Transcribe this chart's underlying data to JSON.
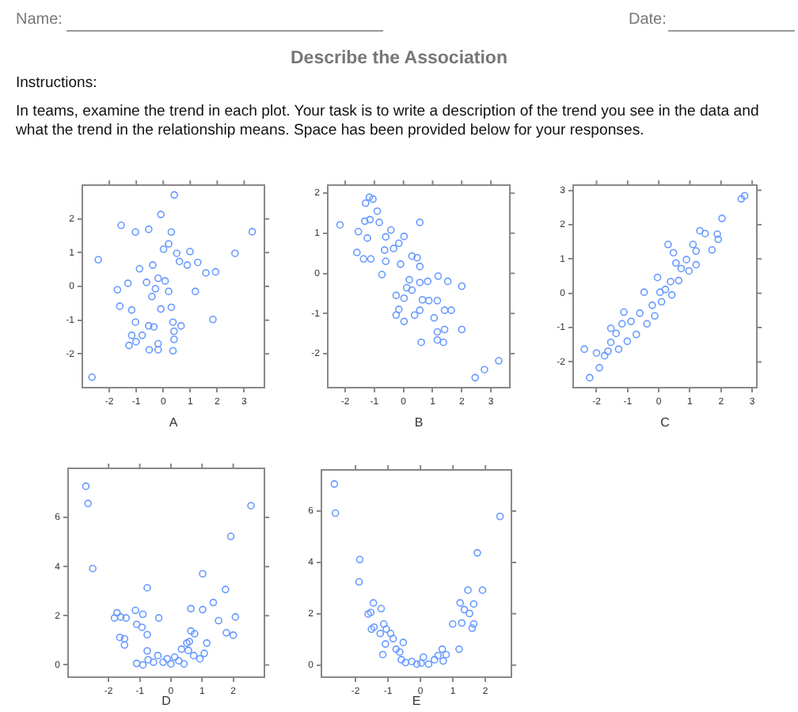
{
  "chart_data": [
    {
      "type": "other",
      "title": "Describe the Association",
      "annotations": [
        "Name:",
        "Date:",
        "Instructions:",
        "In teams, examine the trend in each plot. Your task is to write a description of the trend you see in the data and what the trend in the relationship means. Space has been provided below for your responses."
      ]
    },
    {
      "type": "scatter",
      "xlabel": "A",
      "marker": "circle",
      "color": "#6699ff",
      "xlim": [
        -3,
        3.75
      ],
      "ylim": [
        -3,
        3
      ],
      "xticks": [
        -2,
        -1,
        0,
        1,
        2,
        3
      ],
      "yticks": [
        -2,
        -1,
        0,
        1,
        2
      ],
      "x": [
        -2.64,
        -2.41,
        -1.56,
        -1.03,
        -0.54,
        -0.09,
        0.3,
        3.3,
        2.66,
        -1.7,
        -1.31,
        -0.88,
        -0.39,
        0.01,
        0.2,
        0.5,
        0.99,
        1.28,
        1.58,
        1.94,
        1.19,
        1.84,
        -0.19,
        -0.62,
        -0.42,
        0.2,
        0.3,
        -0.09,
        -1.17,
        -1.61,
        -1.03,
        -0.54,
        -0.35,
        0.36,
        0.4,
        0.66,
        0.4,
        -1.17,
        -0.78,
        -1.01,
        -1.27,
        -0.19,
        -0.52,
        -0.19,
        0.36,
        0.89,
        0.07,
        -0.29,
        0.6,
        0.41
      ],
      "values": [
        -2.69,
        0.79,
        1.81,
        1.61,
        1.69,
        2.13,
        1.61,
        1.62,
        0.98,
        -0.1,
        0.09,
        0.52,
        0.63,
        1.1,
        1.26,
        0.98,
        1.03,
        0.71,
        0.4,
        0.43,
        -0.15,
        -0.98,
        0.24,
        0.12,
        -0.3,
        -0.15,
        -0.62,
        -0.67,
        -0.7,
        -0.59,
        -1.06,
        -1.17,
        -1.2,
        -1.06,
        -1.33,
        -1.17,
        -1.57,
        -1.45,
        -1.45,
        -1.64,
        -1.75,
        -1.7,
        -1.88,
        -1.88,
        -1.91,
        0.63,
        0.16,
        -0.07,
        0.74,
        2.71
      ]
    },
    {
      "type": "scatter",
      "xlabel": "B",
      "marker": "circle",
      "color": "#6699ff",
      "xlim": [
        -2.6,
        3.65
      ],
      "ylim": [
        -2.85,
        2.2
      ],
      "xticks": [
        -2,
        -1,
        0,
        1,
        2,
        3
      ],
      "yticks": [
        -2,
        -1,
        0,
        1,
        2
      ],
      "x": [
        -2.18,
        -1.6,
        -1.55,
        -1.33,
        -1.15,
        -1.24,
        -1.37,
        -1.12,
        -0.83,
        -0.61,
        -0.43,
        -0.34,
        -0.16,
        -0.65,
        -0.74,
        -0.61,
        0.02,
        -0.1,
        0.29,
        0.47,
        0.56,
        0.56,
        0.2,
        0.11,
        -0.25,
        0.02,
        0.29,
        0.56,
        0.83,
        1.19,
        1.52,
        2.0,
        0.65,
        0.87,
        1.16,
        -0.16,
        0.38,
        -0.25,
        0.02,
        0.56,
        1.05,
        1.41,
        1.64,
        1.16,
        1.41,
        2.0,
        1.16,
        1.37,
        0.61,
        2.46,
        2.78,
        3.27,
        -1.17,
        -1.3,
        -1.05,
        -0.9
      ],
      "values": [
        1.21,
        0.52,
        1.04,
        1.3,
        1.34,
        0.88,
        0.36,
        0.36,
        1.27,
        0.91,
        1.08,
        0.62,
        0.75,
        0.58,
        -0.03,
        0.3,
        0.92,
        0.23,
        0.43,
        0.39,
        1.27,
        0.17,
        -0.16,
        -0.36,
        -0.55,
        -0.62,
        -0.42,
        -0.23,
        -0.2,
        -0.07,
        -0.2,
        -0.32,
        -0.66,
        -0.68,
        -0.68,
        -0.9,
        -1.04,
        -1.04,
        -1.2,
        -0.92,
        -1.11,
        -0.92,
        -0.92,
        -1.46,
        -1.4,
        -1.4,
        -1.66,
        -1.72,
        -1.72,
        -2.6,
        -2.4,
        -2.18,
        1.9,
        1.75,
        1.85,
        1.55
      ]
    },
    {
      "type": "scatter",
      "xlabel": "C",
      "marker": "circle",
      "color": "#6699ff",
      "xlim": [
        -2.75,
        3.15
      ],
      "ylim": [
        -2.75,
        3.15
      ],
      "xticks": [
        -2,
        -1,
        0,
        1,
        2,
        3
      ],
      "yticks": [
        -2,
        -1,
        0,
        1,
        2,
        3
      ],
      "x": [
        -2.39,
        -2.22,
        -2.0,
        -1.91,
        -1.74,
        -1.63,
        -1.54,
        -1.54,
        -1.37,
        -1.29,
        -1.18,
        -1.12,
        -1.01,
        -0.89,
        -0.72,
        -0.61,
        -0.47,
        -0.38,
        -0.21,
        -0.04,
        0.04,
        0.09,
        0.3,
        0.38,
        0.42,
        0.47,
        0.64,
        0.72,
        0.89,
        0.97,
        1.1,
        1.2,
        1.2,
        1.32,
        1.49,
        1.71,
        1.88,
        1.91,
        2.03,
        0.21,
        -0.13,
        0.55,
        2.76,
        2.65
      ],
      "values": [
        -1.63,
        -2.46,
        -1.74,
        -2.17,
        -1.82,
        -1.69,
        -1.43,
        -1.02,
        -1.17,
        -1.63,
        -0.89,
        -0.55,
        -1.4,
        -0.82,
        -1.2,
        -0.58,
        0.03,
        -0.89,
        -0.35,
        0.46,
        0.03,
        -0.25,
        1.42,
        0.34,
        -0.05,
        1.18,
        0.37,
        0.72,
        0.98,
        0.65,
        1.42,
        1.23,
        0.83,
        1.82,
        1.74,
        1.26,
        1.72,
        1.57,
        2.18,
        0.11,
        -0.66,
        0.88,
        2.84,
        2.75
      ]
    },
    {
      "type": "scatter",
      "xlabel": "D",
      "marker": "circle",
      "color": "#6699ff",
      "xlim": [
        -3.3,
        3.0
      ],
      "ylim": [
        -0.5,
        8
      ],
      "xticks": [
        -2,
        -1,
        0,
        1,
        2
      ],
      "yticks": [
        0,
        2,
        4,
        6
      ],
      "x": [
        -2.73,
        -2.66,
        -2.51,
        -1.73,
        -1.81,
        -1.61,
        -1.44,
        -1.64,
        -1.49,
        -1.49,
        -1.14,
        -0.9,
        -1.1,
        -0.93,
        -0.76,
        -0.76,
        -0.39,
        -0.76,
        -1.1,
        -0.9,
        -0.73,
        -0.56,
        -0.42,
        -0.25,
        -0.12,
        0,
        0.12,
        0.25,
        0.42,
        0.34,
        0.51,
        0.59,
        0.64,
        0.76,
        0.64,
        0.56,
        0.73,
        0.93,
        1.07,
        1.15,
        1.02,
        1.02,
        1.36,
        1.53,
        1.75,
        1.78,
        1.92,
        2.0,
        2.07,
        2.57
      ],
      "values": [
        7.27,
        6.57,
        3.92,
        2.12,
        1.91,
        1.95,
        1.91,
        1.12,
        1.06,
        0.81,
        2.22,
        2.06,
        1.65,
        1.53,
        3.14,
        1.23,
        1.91,
        0.57,
        0.06,
        0.0,
        0.21,
        0.11,
        0.38,
        0.11,
        0.25,
        0.04,
        0.32,
        0.17,
        0.04,
        0.64,
        0.89,
        0.95,
        1.38,
        1.27,
        2.29,
        0.59,
        0.38,
        0.25,
        0.47,
        0.89,
        3.71,
        2.25,
        2.54,
        1.8,
        3.07,
        1.31,
        5.23,
        1.21,
        1.95,
        6.48
      ]
    },
    {
      "type": "scatter",
      "xlabel": "E",
      "marker": "circle",
      "color": "#6699ff",
      "xlim": [
        -3.05,
        2.8
      ],
      "ylim": [
        -0.47,
        7.6
      ],
      "xticks": [
        -2,
        -1,
        0,
        1,
        2
      ],
      "yticks": [
        0,
        2,
        4,
        6
      ],
      "x": [
        -2.65,
        -2.62,
        -1.87,
        -1.89,
        -1.61,
        -1.53,
        -1.45,
        -1.43,
        -1.51,
        -1.21,
        -1.24,
        -1.13,
        -1.05,
        -1.16,
        -1.08,
        -0.92,
        -0.84,
        -0.75,
        -0.64,
        -0.53,
        -0.59,
        -0.46,
        -0.27,
        -0.11,
        0.02,
        0.09,
        0.25,
        0.43,
        0.54,
        0.67,
        0.79,
        0.7,
        0.99,
        1.19,
        1.22,
        1.27,
        1.35,
        1.46,
        1.51,
        1.59,
        1.64,
        1.64,
        1.75,
        1.91,
        2.45
      ],
      "values": [
        7.05,
        5.92,
        4.11,
        3.24,
        1.99,
        2.05,
        2.42,
        1.48,
        1.4,
        2.2,
        1.23,
        1.6,
        1.4,
        0.41,
        0.82,
        1.23,
        1.03,
        0.62,
        0.51,
        0.88,
        0.21,
        0.1,
        0.14,
        0.04,
        0.08,
        0.31,
        0.04,
        0.21,
        0.37,
        0.62,
        0.41,
        0.16,
        1.6,
        0.62,
        2.42,
        1.64,
        2.16,
        2.92,
        2.01,
        1.44,
        1.6,
        2.38,
        4.37,
        2.92,
        5.79
      ]
    }
  ]
}
